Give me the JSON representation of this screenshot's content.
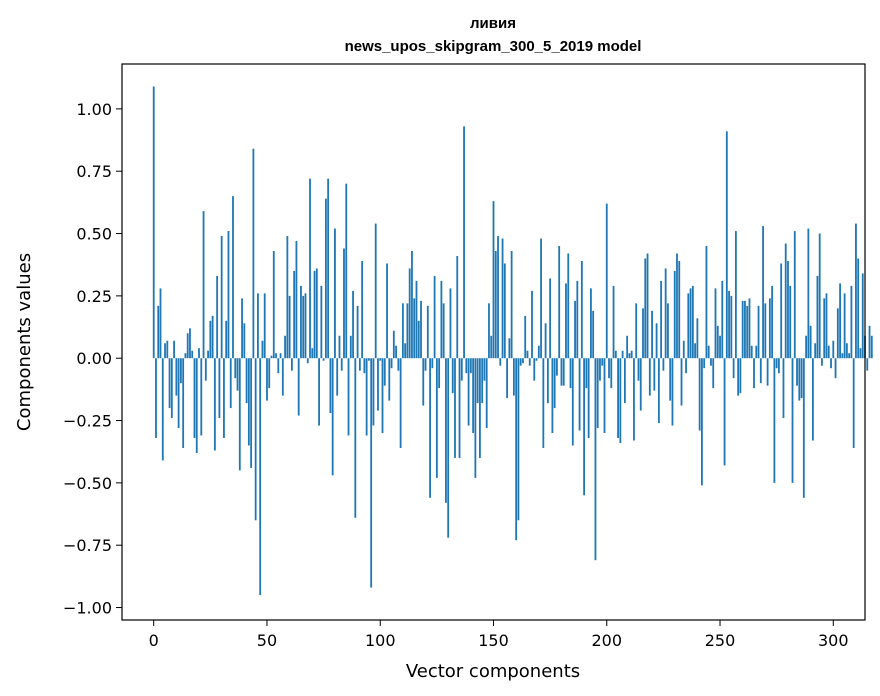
{
  "chart_data": {
    "type": "bar",
    "title_line1": "ливия",
    "title_line2": "news_upos_skipgram_300_5_2019 model",
    "xlabel": "Vector components",
    "ylabel": "Components values",
    "xlim": [
      -14,
      314
    ],
    "ylim": [
      -1.05,
      1.18
    ],
    "xticks": [
      0,
      50,
      100,
      150,
      200,
      250,
      300
    ],
    "xtick_labels": [
      "0",
      "50",
      "100",
      "150",
      "200",
      "250",
      "300"
    ],
    "yticks": [
      -1.0,
      -0.75,
      -0.5,
      -0.25,
      0.0,
      0.25,
      0.5,
      0.75,
      1.0
    ],
    "ytick_labels": [
      "−1.00",
      "−0.75",
      "−0.50",
      "−0.25",
      "0.00",
      "0.25",
      "0.50",
      "0.75",
      "1.00"
    ],
    "bar_color": "#1f77b4",
    "values": [
      1.09,
      -0.32,
      0.21,
      0.28,
      -0.41,
      0.06,
      0.07,
      -0.2,
      -0.24,
      0.07,
      -0.15,
      -0.28,
      -0.1,
      -0.36,
      0.02,
      0.1,
      0.12,
      0.03,
      -0.32,
      -0.38,
      0.04,
      -0.31,
      0.59,
      -0.09,
      0.03,
      0.15,
      0.17,
      -0.37,
      0.33,
      -0.24,
      0.49,
      -0.32,
      0.15,
      0.51,
      -0.2,
      0.65,
      -0.08,
      -0.13,
      -0.45,
      0.24,
      0.14,
      -0.18,
      -0.35,
      -0.44,
      0.84,
      -0.65,
      0.26,
      -0.95,
      0.07,
      0.26,
      -0.17,
      -0.12,
      0.01,
      0.43,
      0.02,
      -0.06,
      0.02,
      -0.15,
      0.09,
      0.49,
      0.25,
      -0.05,
      0.35,
      0.47,
      -0.23,
      0.29,
      0.25,
      0.26,
      -0.02,
      0.72,
      0.04,
      0.35,
      0.36,
      -0.27,
      0.29,
      -0.01,
      0.64,
      0.72,
      -0.22,
      -0.47,
      0.52,
      -0.15,
      0.09,
      -0.05,
      0.44,
      0.7,
      -0.31,
      0.09,
      0.27,
      -0.64,
      0.21,
      -0.05,
      0.39,
      -0.06,
      -0.31,
      -0.01,
      -0.92,
      -0.27,
      0.54,
      -0.21,
      -0.01,
      -0.3,
      -0.11,
      0.38,
      -0.17,
      -0.04,
      0.11,
      0.05,
      -0.05,
      -0.36,
      0.22,
      0.06,
      0.22,
      0.36,
      0.43,
      0.24,
      0.31,
      0.15,
      0.23,
      -0.19,
      -0.05,
      0.21,
      -0.56,
      -0.04,
      0.33,
      -0.48,
      -0.12,
      0.31,
      0.22,
      -0.58,
      -0.72,
      0.28,
      -0.14,
      -0.4,
      0.41,
      -0.4,
      -0.09,
      0.93,
      -0.06,
      -0.27,
      -0.06,
      -0.3,
      -0.48,
      -0.18,
      -0.4,
      -0.18,
      -0.09,
      -0.28,
      0.22,
      0.09,
      0.63,
      0.43,
      0.49,
      -0.03,
      0.48,
      0.38,
      -0.16,
      0.08,
      0.43,
      -0.15,
      -0.73,
      -0.65,
      -0.03,
      -0.02,
      0.17,
      0.03,
      -0.03,
      0.27,
      -0.09,
      -0.01,
      0.05,
      0.48,
      -0.36,
      0.14,
      -0.18,
      0.32,
      -0.3,
      -0.2,
      -0.07,
      0.45,
      -0.11,
      -0.11,
      0.3,
      0.42,
      -0.12,
      -0.35,
      0.23,
      0.31,
      -0.29,
      0.39,
      -0.55,
      -0.12,
      -0.32,
      0.28,
      0.19,
      -0.81,
      -0.28,
      -0.09,
      -0.03,
      -0.3,
      0.62,
      -0.08,
      -0.12,
      0.29,
      0.03,
      -0.32,
      -0.34,
      0.03,
      -0.18,
      0.09,
      0.02,
      0.03,
      -0.33,
      0.22,
      -0.09,
      -0.21,
      0.2,
      0.4,
      0.42,
      -0.15,
      0.19,
      -0.13,
      0.14,
      -0.26,
      0.31,
      -0.05,
      0.36,
      0.22,
      -0.17,
      -0.27,
      0.35,
      0.42,
      0.39,
      -0.19,
      0.07,
      -0.06,
      0.26,
      0.28,
      0.29,
      0.06,
      0.16,
      -0.29,
      -0.51,
      -0.04,
      0.45,
      0.05,
      -0.03,
      -0.12,
      0.28,
      0.13,
      0.09,
      0.31,
      -0.43,
      0.91,
      0.27,
      0.25,
      -0.08,
      0.51,
      -0.15,
      -0.14,
      0.23,
      0.23,
      0.21,
      0.24,
      0.05,
      -0.12,
      0.05,
      0.21,
      -0.1,
      0.53,
      0.22,
      -0.11,
      0.24,
      0.29,
      -0.5,
      -0.04,
      -0.06,
      0.38,
      -0.24,
      0.46,
      0.39,
      0.29,
      -0.5,
      0.51,
      -0.11,
      -0.17,
      -0.16,
      -0.56,
      0.09,
      0.52,
      0.13,
      -0.33,
      0.06,
      0.33,
      0.5,
      -0.03,
      0.24,
      0.26,
      0.05,
      -0.04,
      0.07,
      -0.08,
      0.2,
      0.3,
      0.02,
      0.26,
      0.06,
      0.02,
      0.29,
      -0.36,
      0.54,
      0.4,
      0.04,
      0.34,
      0.09,
      -0.05,
      0.13,
      0.09
    ]
  }
}
